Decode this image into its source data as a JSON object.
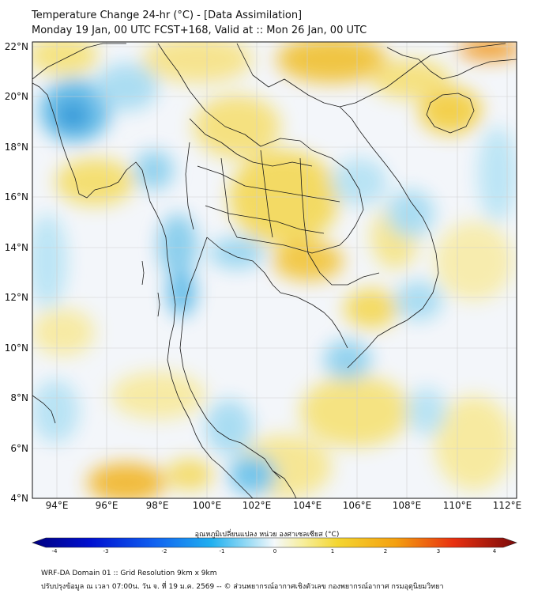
{
  "header": {
    "title_line1": "Temperature Change 24-hr (°C) - [Data Assimilation]",
    "title_line2": "Monday 19 Jan, 00 UTC FCST+168, Valid at :: Mon 26 Jan, 00 UTC"
  },
  "map": {
    "lat_labels": [
      "22°N",
      "20°N",
      "18°N",
      "16°N",
      "14°N",
      "12°N",
      "10°N",
      "8°N",
      "6°N",
      "4°N"
    ],
    "lon_labels": [
      "94°E",
      "96°E",
      "98°E",
      "100°E",
      "102°E",
      "104°E",
      "106°E",
      "108°E",
      "110°E",
      "112°E"
    ],
    "lat_range": [
      4,
      22.2
    ],
    "lon_range": [
      93,
      112.6
    ],
    "colors": {
      "warm": "#f3d84a",
      "warm_strong": "#f0a020",
      "cool": "#8fd0ee",
      "cool_strong": "#1e9ad6",
      "neutral": "#f4f7fb",
      "border": "#1a1a1a",
      "grid": "#cfcfcf"
    }
  },
  "colorbar": {
    "label": "อุณหภูมิเปลี่ยนแปลง หน่วย องศาเซลเซียส (°C)",
    "ticks": [
      "-4",
      "-3",
      "-2",
      "-1",
      "0",
      "1",
      "2",
      "3",
      "4"
    ],
    "range": [
      -4,
      4
    ]
  },
  "footer": {
    "line1": "WRF-DA Domain 01 :: Grid Resolution 9km x 9km",
    "line2": "ปรับปรุงข้อมูล ณ เวลา 07:00น. วัน จ. ที่ 19 ม.ค. 2569 -- © ส่วนพยากรณ์อากาศเชิงตัวเลข กองพยากรณ์อากาศ กรมอุตุนิยมวิทยา"
  }
}
